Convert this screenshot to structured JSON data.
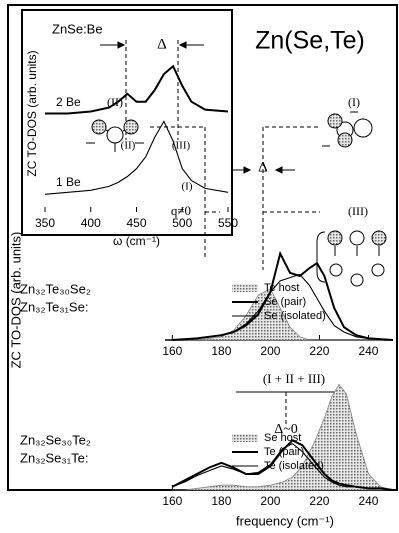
{
  "figure": {
    "title": "Zn(Se,Te)",
    "ylabel": "ZC TO-DOS (arb. units)",
    "xlabel": "frequency (cm⁻¹)"
  },
  "chart_data": [
    {
      "type": "line",
      "title": "ZnSe:Be",
      "xlabel": "ω (cm⁻¹)",
      "ylabel": "ZC TO-DOS (arb. units)",
      "x": [
        350,
        375,
        400,
        420,
        430,
        440,
        450,
        460,
        470,
        480,
        490,
        500,
        510,
        525,
        550
      ],
      "xlim": [
        350,
        550
      ],
      "xticks": [
        350,
        400,
        450,
        500,
        550
      ],
      "ylim": [
        0,
        1
      ],
      "series": [
        {
          "name": "2 Be",
          "color": "#000000",
          "style": "thick",
          "values": [
            0.5,
            0.5,
            0.51,
            0.53,
            0.56,
            0.6,
            0.56,
            0.56,
            0.62,
            0.7,
            0.74,
            0.64,
            0.56,
            0.52,
            0.51
          ]
        },
        {
          "name": "1 Be",
          "color": "#000000",
          "style": "thin",
          "values": [
            0.09,
            0.1,
            0.11,
            0.13,
            0.15,
            0.18,
            0.22,
            0.28,
            0.38,
            0.46,
            0.36,
            0.22,
            0.16,
            0.12,
            0.1
          ]
        }
      ],
      "annotations": [
        "Δ",
        "(II)",
        "(III)",
        "(I)"
      ]
    },
    {
      "type": "line",
      "compounds": [
        "Zn₃₂Te₃₀Se₂",
        "Zn₃₂Te₃₁Se:"
      ],
      "x": [
        160,
        170,
        180,
        185,
        190,
        195,
        200,
        204,
        208,
        212,
        216,
        219,
        222,
        226,
        230,
        235,
        240,
        250
      ],
      "xlim": [
        157,
        250
      ],
      "xticks": [
        160,
        180,
        200,
        220,
        240
      ],
      "ylim": [
        0,
        1
      ],
      "legend": true,
      "series": [
        {
          "name": "Te host",
          "color": "#808080",
          "style": "shaded",
          "values": [
            0,
            0,
            0.02,
            0.06,
            0.15,
            0.28,
            0.32,
            0.2,
            0.08,
            0.02,
            0,
            0,
            0,
            0,
            0,
            0,
            0,
            0
          ]
        },
        {
          "name": "Se (pair)",
          "color": "#000000",
          "style": "thick",
          "values": [
            0,
            0.01,
            0.03,
            0.05,
            0.09,
            0.16,
            0.3,
            0.54,
            0.42,
            0.4,
            0.45,
            0.48,
            0.4,
            0.2,
            0.08,
            0.03,
            0.01,
            0
          ]
        },
        {
          "name": "Se (isolated)",
          "color": "#000000",
          "style": "thin",
          "values": [
            0,
            0.01,
            0.03,
            0.05,
            0.1,
            0.18,
            0.3,
            0.37,
            0.39,
            0.41,
            0.34,
            0.26,
            0.18,
            0.09,
            0.05,
            0.02,
            0.01,
            0
          ]
        }
      ],
      "annotations": [
        "(II)",
        "(I)",
        "(III)",
        "q≠0",
        "Δ"
      ]
    },
    {
      "type": "line",
      "compounds": [
        "Zn₃₂Se₃₀Te₂",
        "Zn₃₂Se₃₁Te:"
      ],
      "x": [
        160,
        165,
        170,
        175,
        180,
        185,
        190,
        195,
        200,
        205,
        209,
        213,
        218,
        222,
        225,
        228,
        231,
        235,
        240,
        245,
        250
      ],
      "xlim": [
        157,
        250
      ],
      "xticks": [
        160,
        180,
        200,
        220,
        240
      ],
      "ylim": [
        0,
        1
      ],
      "legend": true,
      "series": [
        {
          "name": "Se host",
          "color": "#808080",
          "style": "shaded",
          "values": [
            0,
            0,
            0.01,
            0.02,
            0.03,
            0.03,
            0.02,
            0.02,
            0.03,
            0.05,
            0.08,
            0.15,
            0.3,
            0.45,
            0.58,
            0.66,
            0.6,
            0.35,
            0.1,
            0.02,
            0
          ]
        },
        {
          "name": "Te (pair)",
          "color": "#000000",
          "style": "thick",
          "values": [
            0.02,
            0.06,
            0.1,
            0.14,
            0.17,
            0.14,
            0.1,
            0.1,
            0.15,
            0.25,
            0.31,
            0.28,
            0.18,
            0.1,
            0.06,
            0.04,
            0.03,
            0.02,
            0.01,
            0.01,
            0
          ]
        },
        {
          "name": "Te (isolated)",
          "color": "#000000",
          "style": "thin",
          "values": [
            0.02,
            0.05,
            0.09,
            0.12,
            0.15,
            0.13,
            0.1,
            0.11,
            0.16,
            0.26,
            0.29,
            0.24,
            0.15,
            0.08,
            0.05,
            0.03,
            0.02,
            0.02,
            0.01,
            0.01,
            0
          ]
        }
      ],
      "annotations": [
        "(I + II + III)",
        "Δ~0"
      ]
    }
  ]
}
